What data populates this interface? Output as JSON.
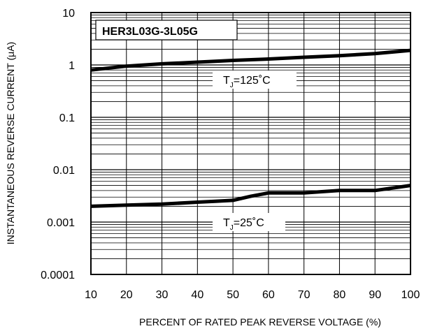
{
  "chart_data": {
    "type": "line",
    "title": "HER3L03G-3L05G",
    "xlabel": "PERCENT OF RATED PEAK REVERSE VOLTAGE (%)",
    "ylabel": "INSTANTANEOUS REVERSE CURRENT (μA)",
    "x_ticks": [
      "10",
      "20",
      "30",
      "40",
      "50",
      "60",
      "70",
      "80",
      "90",
      "100"
    ],
    "y_ticks": [
      "10",
      "1",
      "0.1",
      "0.01",
      "0.001",
      "0.0001"
    ],
    "xlim": [
      10,
      100
    ],
    "ylim": [
      0.0001,
      10
    ],
    "y_scale": "log",
    "grid": true,
    "series": [
      {
        "name": "TJ=125°C",
        "x": [
          10,
          20,
          30,
          40,
          50,
          60,
          70,
          80,
          90,
          100
        ],
        "y": [
          0.8,
          0.95,
          1.05,
          1.13,
          1.22,
          1.3,
          1.4,
          1.5,
          1.65,
          1.9
        ]
      },
      {
        "name": "TJ=25°C",
        "x": [
          10,
          20,
          30,
          40,
          45,
          50,
          55,
          60,
          70,
          80,
          90,
          100
        ],
        "y": [
          0.002,
          0.0021,
          0.0022,
          0.0024,
          0.0025,
          0.0026,
          0.0031,
          0.0036,
          0.0036,
          0.004,
          0.004,
          0.005
        ]
      }
    ],
    "annotations": [
      {
        "prefix": "T",
        "sub": "J",
        "text": "=125",
        "unit": "˚C"
      },
      {
        "prefix": "T",
        "sub": "J",
        "text": "=25",
        "unit": "˚C"
      }
    ]
  },
  "colors": {
    "line": "#000000",
    "grid": "#000000",
    "background": "#ffffff"
  }
}
